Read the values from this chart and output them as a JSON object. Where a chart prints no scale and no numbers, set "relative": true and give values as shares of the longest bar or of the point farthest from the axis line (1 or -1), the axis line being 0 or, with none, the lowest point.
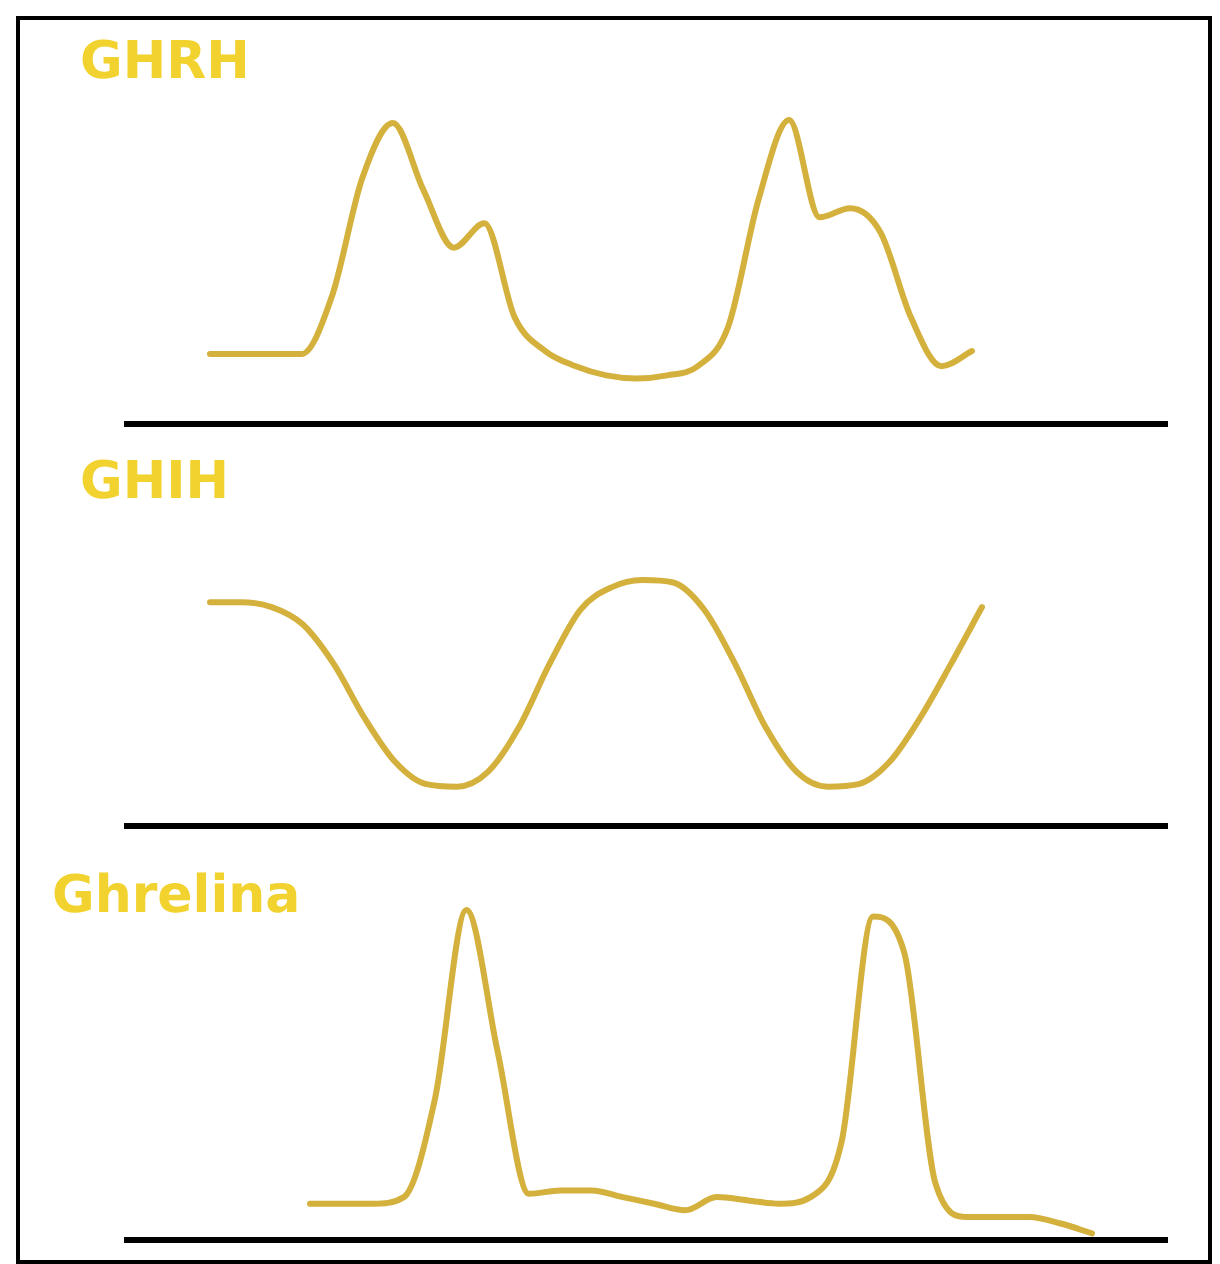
{
  "chart_data": [
    {
      "type": "line",
      "title": "GHRH",
      "relative": true,
      "categories": [
        null,
        null,
        null,
        null,
        null,
        null,
        null,
        null,
        null,
        null,
        null,
        null,
        null,
        null,
        null,
        null,
        null,
        null,
        null,
        null,
        null,
        null,
        null,
        null,
        null,
        null
      ],
      "series": [
        {
          "color": "#d4b03c",
          "values": [
            0.23,
            0.23,
            0.23,
            0.23,
            0.42,
            0.81,
            0.99,
            0.77,
            0.58,
            0.66,
            0.35,
            0.24,
            0.19,
            0.16,
            0.15,
            0.16,
            0.19,
            0.32,
            0.74,
            1.0,
            0.68,
            0.71,
            0.63,
            0.35,
            0.19,
            0.24
          ]
        }
      ]
    },
    {
      "type": "line",
      "title": "GHIH",
      "relative": true,
      "categories": [
        null,
        null,
        null,
        null,
        null,
        null,
        null,
        null,
        null,
        null,
        null,
        null,
        null,
        null,
        null,
        null,
        null,
        null,
        null,
        null,
        null,
        null,
        null,
        null,
        null,
        null
      ],
      "series": [
        {
          "color": "#d4b03c",
          "values": [
            0.91,
            0.91,
            0.89,
            0.82,
            0.66,
            0.44,
            0.26,
            0.17,
            0.16,
            0.22,
            0.4,
            0.66,
            0.88,
            0.97,
            1.0,
            0.99,
            0.88,
            0.66,
            0.4,
            0.22,
            0.16,
            0.17,
            0.26,
            0.44,
            0.66,
            0.89
          ]
        }
      ]
    },
    {
      "type": "line",
      "title": "Ghrelina",
      "relative": true,
      "categories": [
        null,
        null,
        null,
        null,
        null,
        null,
        null,
        null,
        null,
        null,
        null,
        null,
        null,
        null,
        null,
        null,
        null,
        null,
        null,
        null,
        null,
        null,
        null,
        null,
        null,
        null
      ],
      "series": [
        {
          "color": "#d4b03c",
          "values": [
            0.11,
            0.11,
            0.11,
            0.13,
            0.43,
            1.0,
            0.57,
            0.14,
            0.15,
            0.15,
            0.13,
            0.11,
            0.09,
            0.13,
            0.12,
            0.11,
            0.13,
            0.3,
            0.98,
            0.87,
            0.17,
            0.07,
            0.07,
            0.07,
            0.05,
            0.02
          ]
        }
      ]
    }
  ]
}
